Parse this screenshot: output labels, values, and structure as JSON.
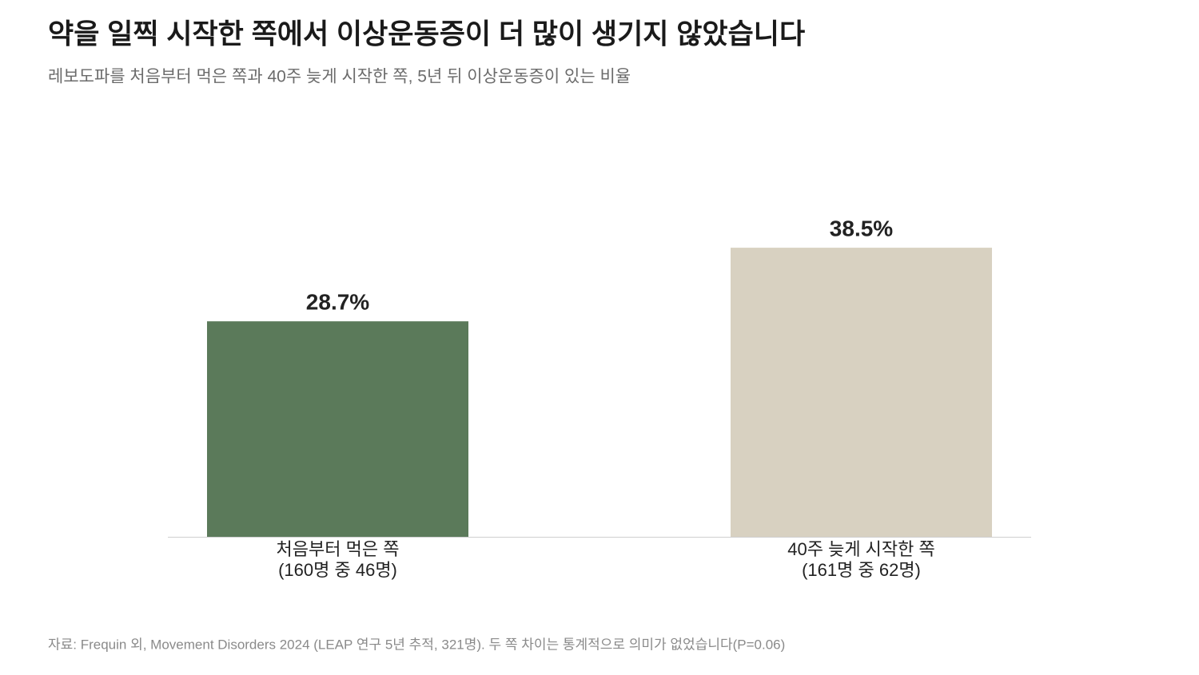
{
  "chart_data": {
    "type": "bar",
    "title": "약을 일찍 시작한 쪽에서 이상운동증이 더 많이 생기지 않았습니다",
    "subtitle": "레보도파를 처음부터 먹은 쪽과 40주 늦게 시작한 쪽, 5년 뒤 이상운동증이 있는 비율",
    "categories": [
      "처음부터 먹은 쪽",
      "40주 늦게 시작한 쪽"
    ],
    "category_notes": [
      "(160명 중 46명)",
      "(161명 중 62명)"
    ],
    "values": [
      28.7,
      38.5
    ],
    "value_labels": [
      "28.7%",
      "38.5%"
    ],
    "colors": [
      "#5b7a5a",
      "#d8d1c1"
    ],
    "source": "자료: Frequin 외, Movement Disorders 2024 (LEAP 연구 5년 추적, 321명). 두 쪽 차이는 통계적으로 의미가 없었습니다(P=0.06)"
  }
}
